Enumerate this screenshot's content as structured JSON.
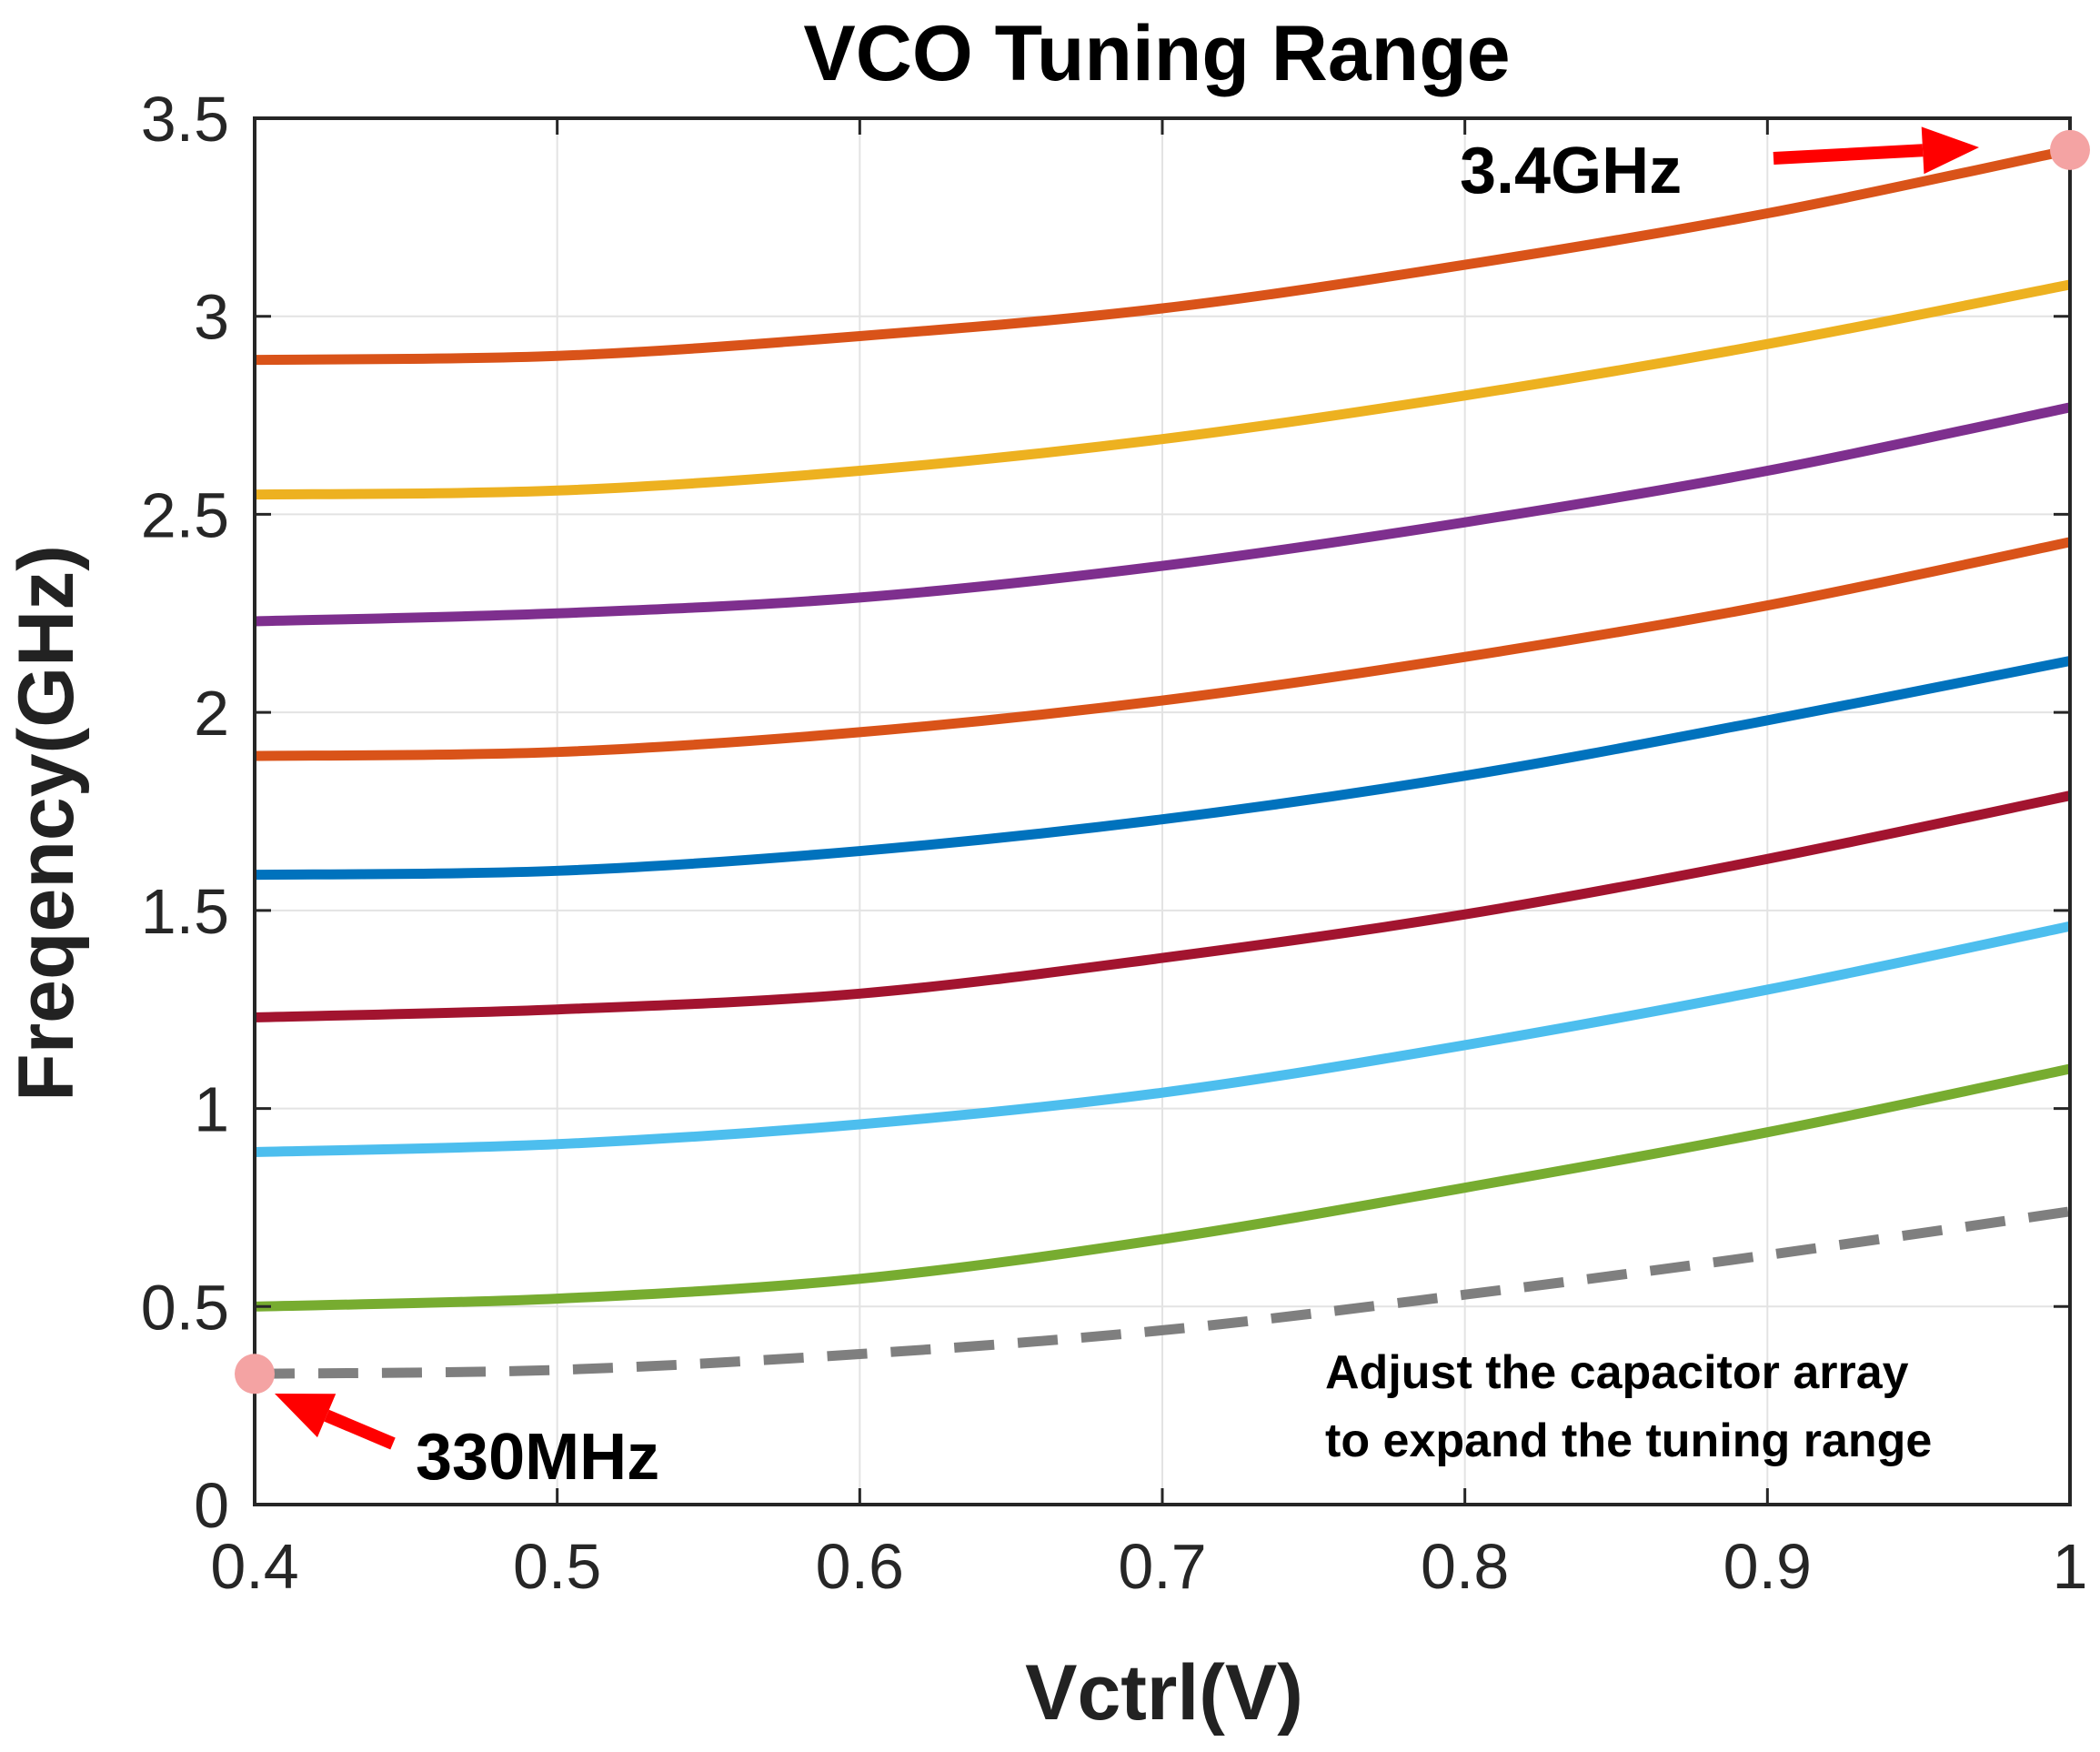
{
  "chart_data": {
    "type": "line",
    "title": "VCO Tuning Range",
    "xlabel": "Vctrl(V)",
    "ylabel": "Freqency(GHz)",
    "xlim": [
      0.4,
      1.0
    ],
    "ylim": [
      0,
      3.5
    ],
    "grid": true,
    "xticks": [
      "0.4",
      "0.5",
      "0.6",
      "0.7",
      "0.8",
      "0.9",
      "1"
    ],
    "yticks": [
      "0",
      "0.5",
      "1",
      "1.5",
      "2",
      "2.5",
      "3",
      "3.5"
    ],
    "x": [
      0.4,
      0.5,
      0.6,
      0.7,
      0.8,
      0.9,
      1.0
    ],
    "series": [
      {
        "values": [
          0.33,
          0.34,
          0.38,
          0.44,
          0.53,
          0.63,
          0.74
        ],
        "color": "#7f7f7f",
        "dashed": true
      },
      {
        "values": [
          0.5,
          0.52,
          0.57,
          0.67,
          0.8,
          0.94,
          1.1
        ],
        "color": "#77ac30",
        "dashed": false
      },
      {
        "values": [
          0.89,
          0.91,
          0.96,
          1.04,
          1.16,
          1.3,
          1.46
        ],
        "color": "#4dbeee",
        "dashed": false
      },
      {
        "values": [
          1.23,
          1.25,
          1.29,
          1.38,
          1.49,
          1.63,
          1.79
        ],
        "color": "#a2142f",
        "dashed": false
      },
      {
        "values": [
          1.59,
          1.6,
          1.65,
          1.73,
          1.84,
          1.98,
          2.13
        ],
        "color": "#0072bd",
        "dashed": false
      },
      {
        "values": [
          1.89,
          1.9,
          1.95,
          2.03,
          2.14,
          2.27,
          2.43
        ],
        "color": "#d95319",
        "dashed": false
      },
      {
        "values": [
          2.23,
          2.25,
          2.29,
          2.37,
          2.48,
          2.61,
          2.77
        ],
        "color": "#7e2f8e",
        "dashed": false
      },
      {
        "values": [
          2.55,
          2.56,
          2.61,
          2.69,
          2.8,
          2.93,
          3.08
        ],
        "color": "#edb120",
        "dashed": false
      },
      {
        "values": [
          2.89,
          2.9,
          2.95,
          3.02,
          3.13,
          3.26,
          3.42
        ],
        "color": "#d95319",
        "dashed": false
      }
    ],
    "markers": [
      {
        "x": 0.4,
        "y": 0.33,
        "color": "#f4a3a3"
      },
      {
        "x": 1.0,
        "y": 3.42,
        "color": "#f4a3a3"
      }
    ],
    "annotations": {
      "max_label": "3.4GHz",
      "min_label": "330MHz",
      "note_line1": "Adjust the capacitor array",
      "note_line2": "to expand the tuning range"
    },
    "arrow_color": "#ff0000"
  }
}
